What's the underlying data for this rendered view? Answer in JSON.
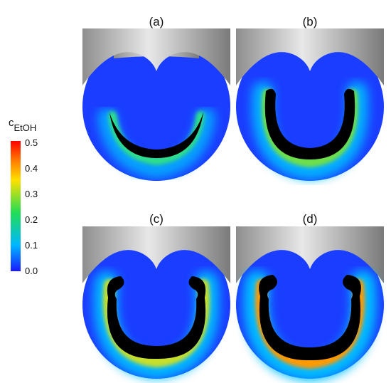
{
  "colorbar": {
    "title_main": "c",
    "title_sub": "EtOH",
    "ticks": [
      "0.5",
      "0.4",
      "0.3",
      "0.2",
      "0.1",
      "0.0"
    ],
    "colors": [
      "#1a1aff",
      "#00b7ff",
      "#22dd55",
      "#ffe000",
      "#ff4a00",
      "#ff0000"
    ]
  },
  "panels": [
    {
      "label": "(a)"
    },
    {
      "label": "(b)"
    },
    {
      "label": "(c)"
    },
    {
      "label": "(d)"
    }
  ],
  "palette": {
    "background_field": "#1a3dff",
    "droplet": "#000000",
    "cap_gray": "#b8b8b8"
  }
}
